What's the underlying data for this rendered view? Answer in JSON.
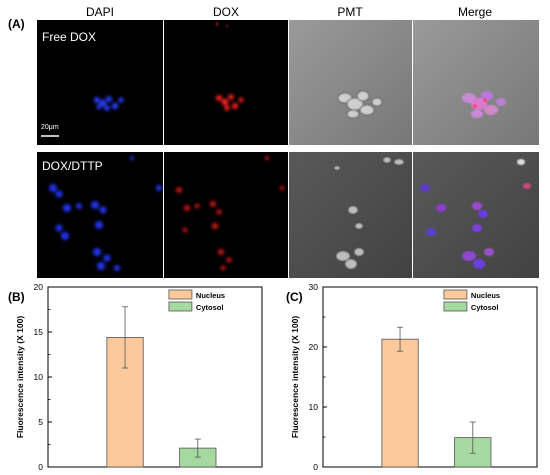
{
  "figure": {
    "panel_a": "(A)",
    "panel_b": "(B)",
    "panel_c": "(C)",
    "columns": [
      "DAPI",
      "DOX",
      "PMT",
      "Merge"
    ],
    "rows": [
      "Free DOX",
      "DOX/DTTP"
    ],
    "scale_bar": "20μm"
  },
  "colors": {
    "nucleus_fill": "#fbc99b",
    "cytosol_fill": "#a5d9a0",
    "bar_stroke": "#555555",
    "dapi": "#2233ee",
    "dox": "#e01818"
  },
  "chart_data": [
    {
      "type": "bar",
      "title": "",
      "xlabel": "",
      "ylabel": "Fluorescence intensity (X 100)",
      "ylim": [
        0,
        20
      ],
      "yticks": [
        0,
        5,
        10,
        15,
        20
      ],
      "categories": [
        "Nucleus",
        "Cytosol"
      ],
      "values": [
        14.4,
        2.1
      ],
      "errors": [
        3.4,
        1.0
      ],
      "legend": [
        "Nucleus",
        "Cytosol"
      ],
      "legend_position": "top-right"
    },
    {
      "type": "bar",
      "title": "",
      "xlabel": "",
      "ylabel": "Fluorescence intensity (X 100)",
      "ylim": [
        0,
        30
      ],
      "yticks": [
        0,
        10,
        20,
        30
      ],
      "categories": [
        "Nucleus",
        "Cytosol"
      ],
      "values": [
        21.3,
        4.9
      ],
      "errors": [
        2.0,
        2.6
      ],
      "legend": [
        "Nucleus",
        "Cytosol"
      ],
      "legend_position": "top-right"
    }
  ]
}
